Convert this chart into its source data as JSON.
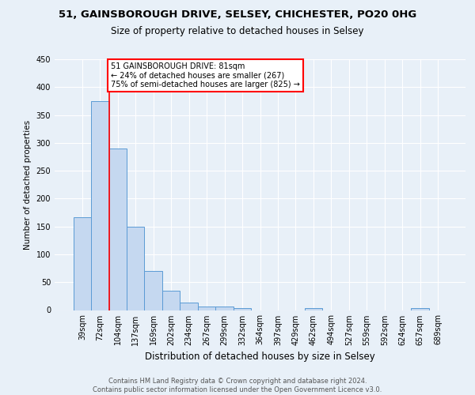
{
  "title1": "51, GAINSBOROUGH DRIVE, SELSEY, CHICHESTER, PO20 0HG",
  "title2": "Size of property relative to detached houses in Selsey",
  "xlabel": "Distribution of detached houses by size in Selsey",
  "ylabel": "Number of detached properties",
  "bar_labels": [
    "39sqm",
    "72sqm",
    "104sqm",
    "137sqm",
    "169sqm",
    "202sqm",
    "234sqm",
    "267sqm",
    "299sqm",
    "332sqm",
    "364sqm",
    "397sqm",
    "429sqm",
    "462sqm",
    "494sqm",
    "527sqm",
    "559sqm",
    "592sqm",
    "624sqm",
    "657sqm",
    "689sqm"
  ],
  "bar_values": [
    167,
    375,
    290,
    149,
    70,
    35,
    14,
    7,
    7,
    4,
    0,
    0,
    0,
    4,
    0,
    0,
    0,
    0,
    0,
    4,
    0
  ],
  "bar_color": "#c5d8f0",
  "bar_edge_color": "#5b9bd5",
  "red_line_x": 1.5,
  "annotation_text": "51 GAINSBOROUGH DRIVE: 81sqm\n← 24% of detached houses are smaller (267)\n75% of semi-detached houses are larger (825) →",
  "annotation_box_color": "white",
  "annotation_box_edge": "red",
  "ylim": [
    0,
    450
  ],
  "yticks": [
    0,
    50,
    100,
    150,
    200,
    250,
    300,
    350,
    400,
    450
  ],
  "footer": "Contains HM Land Registry data © Crown copyright and database right 2024.\nContains public sector information licensed under the Open Government Licence v3.0.",
  "background_color": "#e8f0f8",
  "plot_bg_color": "#e8f0f8",
  "grid_color": "white",
  "title1_fontsize": 9.5,
  "title2_fontsize": 8.5,
  "xlabel_fontsize": 8.5,
  "ylabel_fontsize": 7.5,
  "tick_fontsize": 7,
  "annot_fontsize": 7,
  "footer_fontsize": 6
}
